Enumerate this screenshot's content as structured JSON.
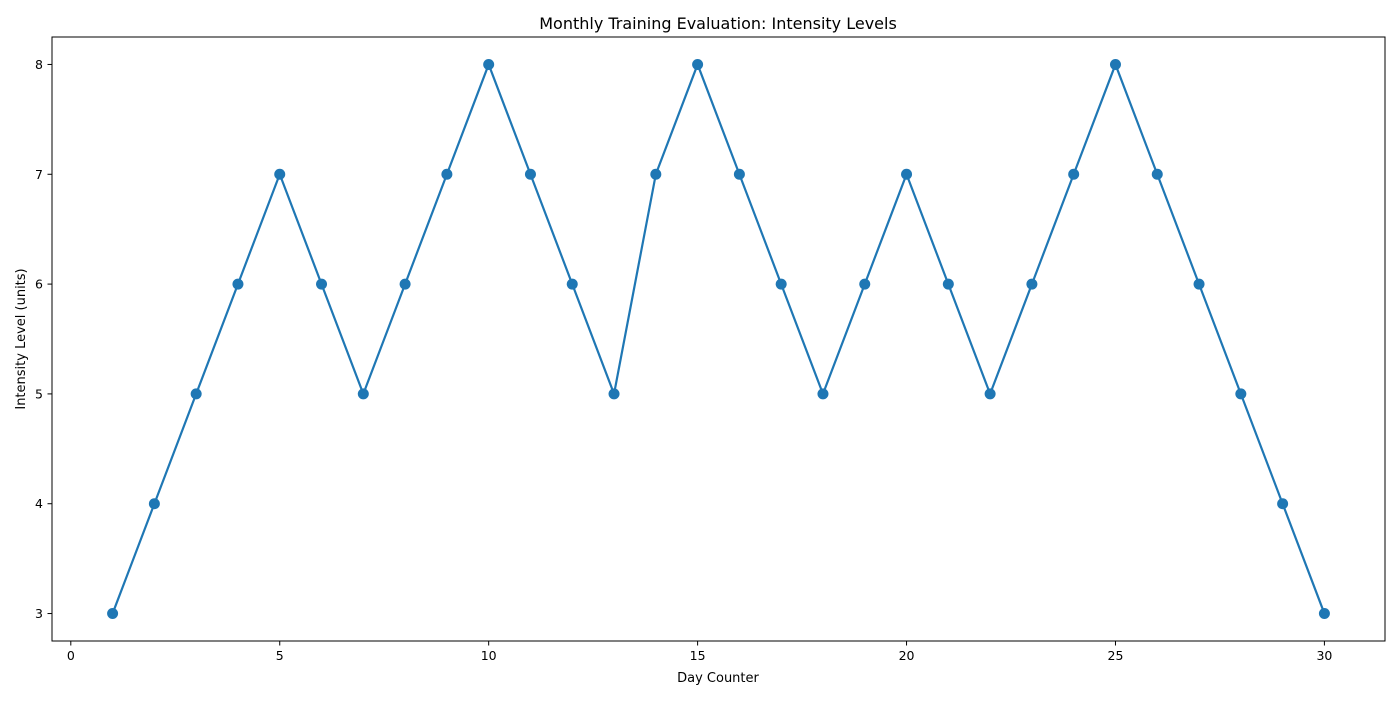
{
  "chart_data": {
    "type": "line",
    "title": "Monthly Training Evaluation: Intensity Levels",
    "xlabel": "Day Counter",
    "ylabel": "Intensity Level (units)",
    "x": [
      1,
      2,
      3,
      4,
      5,
      6,
      7,
      8,
      9,
      10,
      11,
      12,
      13,
      14,
      15,
      16,
      17,
      18,
      19,
      20,
      21,
      22,
      23,
      24,
      25,
      26,
      27,
      28,
      29,
      30
    ],
    "series": [
      {
        "values": [
          3,
          4,
          5,
          6,
          7,
          6,
          5,
          6,
          7,
          8,
          7,
          6,
          5,
          7,
          8,
          7,
          6,
          5,
          6,
          7,
          6,
          5,
          6,
          7,
          8,
          7,
          6,
          5,
          4,
          3
        ],
        "color": "#1f77b4",
        "marker": "circle"
      }
    ],
    "xlim": [
      -0.45,
      31.45
    ],
    "ylim": [
      2.75,
      8.25
    ],
    "xticks": [
      "0",
      "5",
      "10",
      "15",
      "20",
      "25",
      "30"
    ],
    "yticks": [
      "3",
      "4",
      "5",
      "6",
      "7",
      "8"
    ],
    "grid": false,
    "legend": "none"
  }
}
